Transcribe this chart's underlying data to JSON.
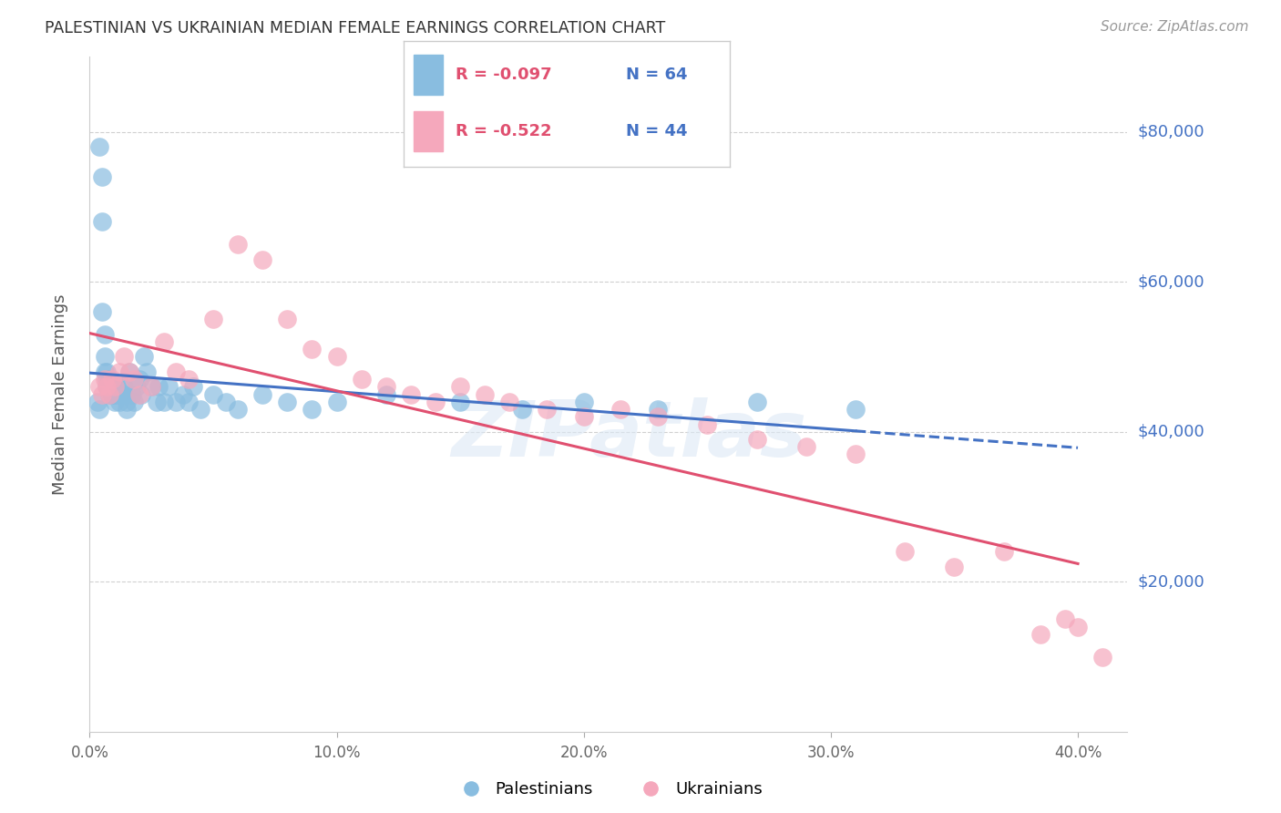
{
  "title": "PALESTINIAN VS UKRAINIAN MEDIAN FEMALE EARNINGS CORRELATION CHART",
  "source": "Source: ZipAtlas.com",
  "ylabel": "Median Female Earnings",
  "xlim": [
    0.0,
    0.42
  ],
  "ylim": [
    0,
    90000
  ],
  "yticks": [
    20000,
    40000,
    60000,
    80000
  ],
  "ytick_labels": [
    "$20,000",
    "$40,000",
    "$60,000",
    "$80,000"
  ],
  "background_color": "#ffffff",
  "grid_color": "#d0d0d0",
  "pal_color": "#89bde0",
  "ukr_color": "#f5a8bc",
  "pal_legend_label": "Palestinians",
  "ukr_legend_label": "Ukrainians",
  "legend_r_pal": "R = -0.097",
  "legend_n_pal": "N = 64",
  "legend_r_ukr": "R = -0.522",
  "legend_n_ukr": "N = 44",
  "watermark": "ZIPatlas",
  "pal_line_color": "#4472c4",
  "ukr_line_color": "#e05070",
  "pal_x": [
    0.003,
    0.004,
    0.004,
    0.005,
    0.005,
    0.005,
    0.006,
    0.006,
    0.006,
    0.007,
    0.007,
    0.007,
    0.008,
    0.008,
    0.008,
    0.008,
    0.009,
    0.009,
    0.009,
    0.01,
    0.01,
    0.01,
    0.011,
    0.011,
    0.012,
    0.012,
    0.013,
    0.013,
    0.014,
    0.014,
    0.015,
    0.015,
    0.016,
    0.017,
    0.018,
    0.019,
    0.02,
    0.021,
    0.022,
    0.023,
    0.025,
    0.027,
    0.028,
    0.03,
    0.032,
    0.035,
    0.038,
    0.04,
    0.042,
    0.045,
    0.05,
    0.055,
    0.06,
    0.07,
    0.08,
    0.09,
    0.1,
    0.12,
    0.15,
    0.175,
    0.2,
    0.23,
    0.27,
    0.31
  ],
  "pal_y": [
    44000,
    43000,
    78000,
    74000,
    68000,
    56000,
    53000,
    50000,
    48000,
    48000,
    47000,
    46000,
    47000,
    46000,
    46000,
    45000,
    46000,
    45000,
    45000,
    46000,
    45000,
    44000,
    46000,
    45000,
    45000,
    44000,
    46000,
    45000,
    46000,
    45000,
    44000,
    43000,
    48000,
    45000,
    44000,
    46000,
    47000,
    45000,
    50000,
    48000,
    46000,
    44000,
    46000,
    44000,
    46000,
    44000,
    45000,
    44000,
    46000,
    43000,
    45000,
    44000,
    43000,
    45000,
    44000,
    43000,
    44000,
    45000,
    44000,
    43000,
    44000,
    43000,
    44000,
    43000
  ],
  "ukr_x": [
    0.004,
    0.005,
    0.006,
    0.007,
    0.008,
    0.009,
    0.01,
    0.012,
    0.014,
    0.016,
    0.018,
    0.02,
    0.025,
    0.03,
    0.035,
    0.04,
    0.05,
    0.06,
    0.07,
    0.08,
    0.09,
    0.1,
    0.11,
    0.12,
    0.13,
    0.14,
    0.15,
    0.16,
    0.17,
    0.185,
    0.2,
    0.215,
    0.23,
    0.25,
    0.27,
    0.29,
    0.31,
    0.33,
    0.35,
    0.37,
    0.385,
    0.395,
    0.4,
    0.41
  ],
  "ukr_y": [
    46000,
    45000,
    47000,
    46000,
    45000,
    47000,
    46000,
    48000,
    50000,
    48000,
    47000,
    45000,
    46000,
    52000,
    48000,
    47000,
    55000,
    65000,
    63000,
    55000,
    51000,
    50000,
    47000,
    46000,
    45000,
    44000,
    46000,
    45000,
    44000,
    43000,
    42000,
    43000,
    42000,
    41000,
    39000,
    38000,
    37000,
    24000,
    22000,
    24000,
    13000,
    15000,
    14000,
    10000
  ]
}
